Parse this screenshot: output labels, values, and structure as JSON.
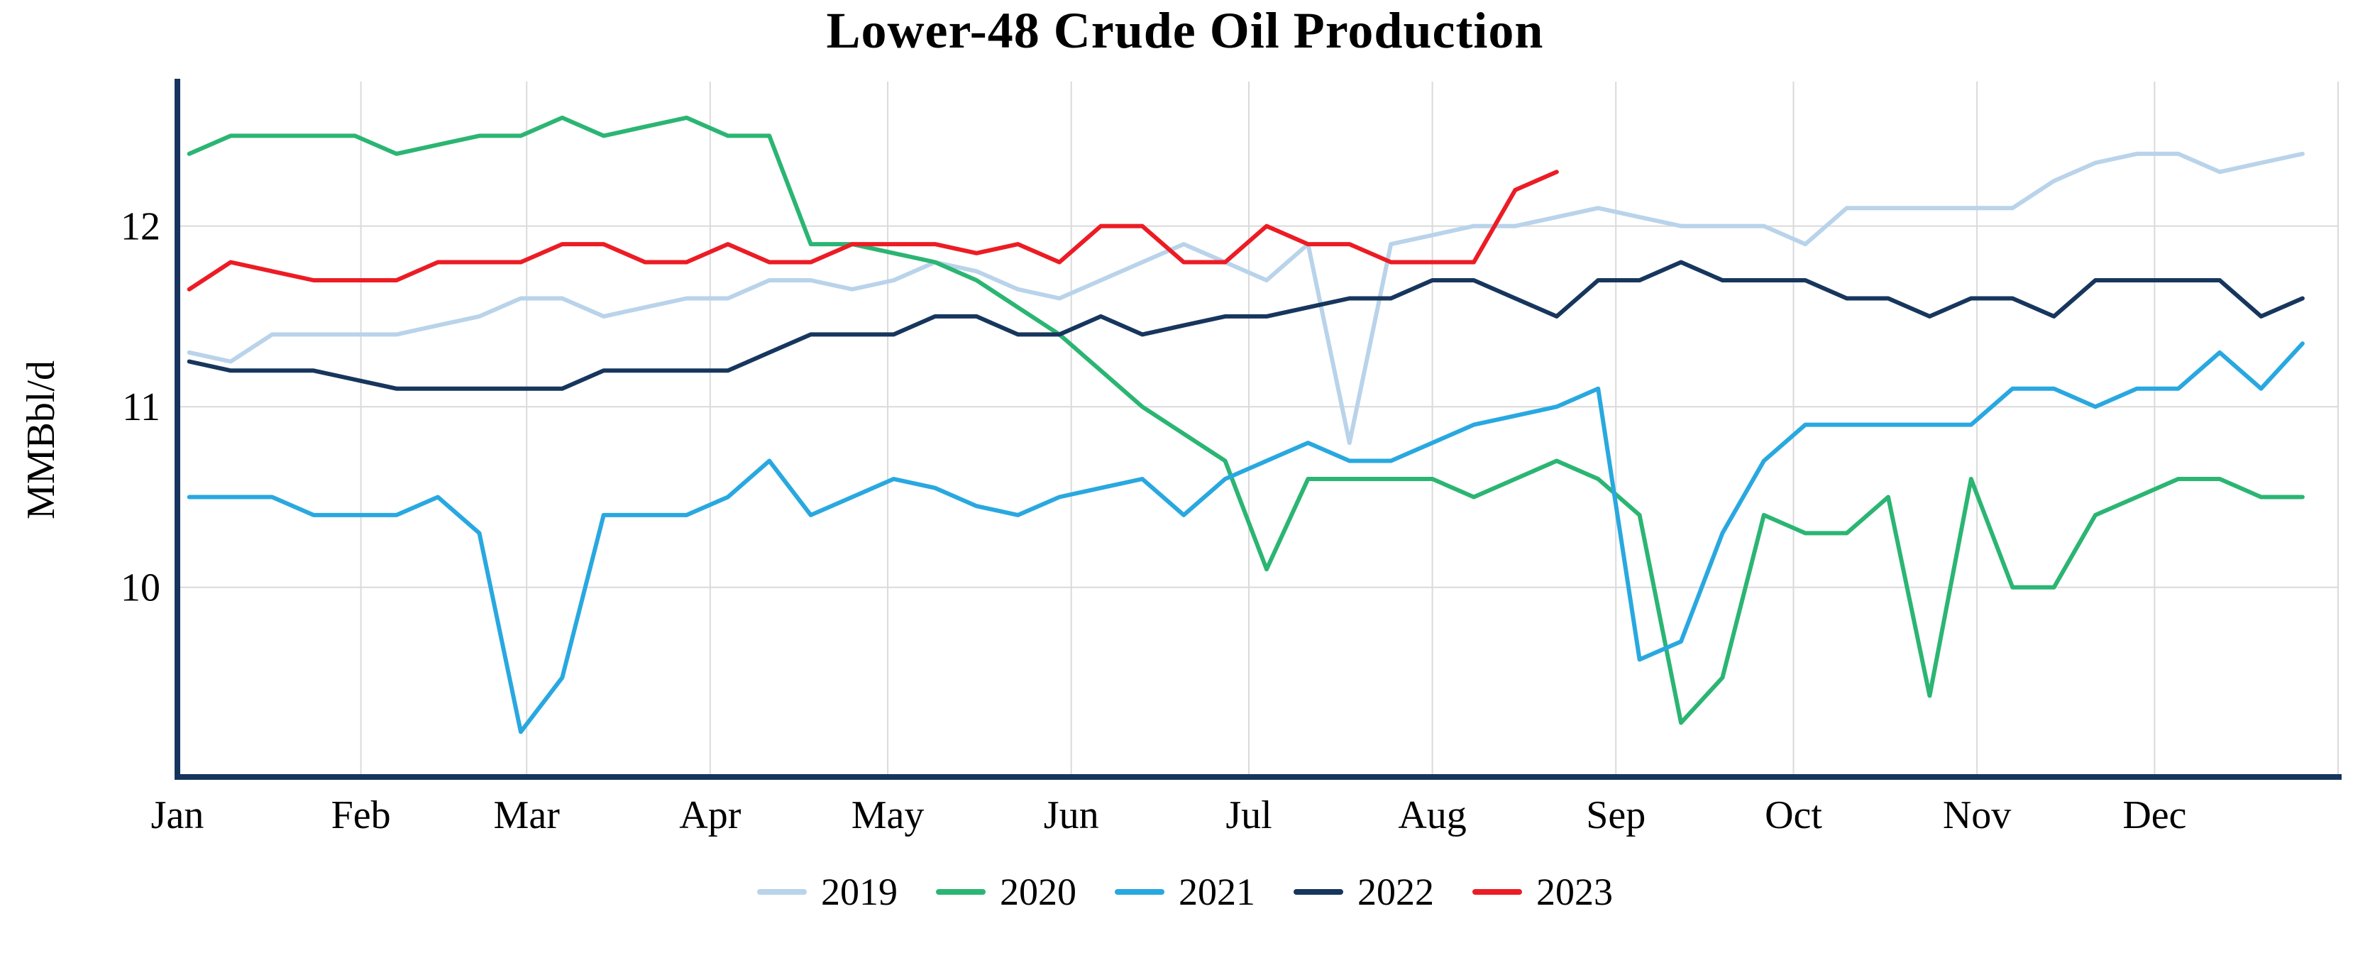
{
  "chart_data": {
    "type": "line",
    "title": "Lower-48 Crude Oil Production",
    "ylabel": "MMBbl/d",
    "xlabel": "",
    "grid": true,
    "legend_position": "bottom",
    "axis_color": "#16355c",
    "grid_color": "#dadada",
    "background_color": "#ffffff",
    "x_unit": "weekly observations, day_of_year = first_day + 7 * index",
    "first_day": 3,
    "x_domain_days": [
      1,
      366
    ],
    "month_start_days": [
      1,
      32,
      60,
      91,
      121,
      152,
      182,
      213,
      244,
      274,
      305,
      335
    ],
    "x_tick_labels": [
      "Jan",
      "Feb",
      "Mar",
      "Apr",
      "May",
      "Jun",
      "Jul",
      "Aug",
      "Sep",
      "Oct",
      "Nov",
      "Dec"
    ],
    "y_ticks": [
      10,
      11,
      12
    ],
    "y_tick_labels": [
      "10",
      "11",
      "12"
    ],
    "ylim": [
      8.95,
      12.8
    ],
    "series": [
      {
        "name": "2019",
        "color": "#b9d3ea",
        "values": [
          11.3,
          11.25,
          11.4,
          11.4,
          11.4,
          11.4,
          11.45,
          11.5,
          11.6,
          11.6,
          11.5,
          11.55,
          11.6,
          11.6,
          11.7,
          11.7,
          11.65,
          11.7,
          11.8,
          11.75,
          11.65,
          11.6,
          11.7,
          11.8,
          11.9,
          11.8,
          11.7,
          11.9,
          10.8,
          11.9,
          11.95,
          12.0,
          12.0,
          12.05,
          12.1,
          12.05,
          12.0,
          12.0,
          12.0,
          11.9,
          12.1,
          12.1,
          12.1,
          12.1,
          12.1,
          12.25,
          12.35,
          12.4,
          12.4,
          12.3,
          12.35,
          12.4
        ]
      },
      {
        "name": "2020",
        "color": "#2bb573",
        "values": [
          12.4,
          12.5,
          12.5,
          12.5,
          12.5,
          12.4,
          12.45,
          12.5,
          12.5,
          12.6,
          12.5,
          12.55,
          12.6,
          12.5,
          12.5,
          11.9,
          11.9,
          11.85,
          11.8,
          11.7,
          11.55,
          11.4,
          11.2,
          11.0,
          10.85,
          10.7,
          10.1,
          10.6,
          10.6,
          10.6,
          10.6,
          10.5,
          10.6,
          10.7,
          10.6,
          10.4,
          9.25,
          9.5,
          10.4,
          10.3,
          10.3,
          10.5,
          9.4,
          10.6,
          10.0,
          10.0,
          10.4,
          10.5,
          10.6,
          10.6,
          10.5,
          10.5
        ]
      },
      {
        "name": "2021",
        "color": "#29a8e0",
        "values": [
          10.5,
          10.5,
          10.5,
          10.4,
          10.4,
          10.4,
          10.5,
          10.3,
          9.2,
          9.5,
          10.4,
          10.4,
          10.4,
          10.5,
          10.7,
          10.4,
          10.5,
          10.6,
          10.55,
          10.45,
          10.4,
          10.5,
          10.55,
          10.6,
          10.4,
          10.6,
          10.7,
          10.8,
          10.7,
          10.7,
          10.8,
          10.9,
          10.95,
          11.0,
          11.1,
          9.6,
          9.7,
          10.3,
          10.7,
          10.9,
          10.9,
          10.9,
          10.9,
          10.9,
          11.1,
          11.1,
          11.0,
          11.1,
          11.1,
          11.3,
          11.1,
          11.35
        ]
      },
      {
        "name": "2022",
        "color": "#17365d",
        "values": [
          11.25,
          11.2,
          11.2,
          11.2,
          11.15,
          11.1,
          11.1,
          11.1,
          11.1,
          11.1,
          11.2,
          11.2,
          11.2,
          11.2,
          11.3,
          11.4,
          11.4,
          11.4,
          11.5,
          11.5,
          11.4,
          11.4,
          11.5,
          11.4,
          11.45,
          11.5,
          11.5,
          11.55,
          11.6,
          11.6,
          11.7,
          11.7,
          11.6,
          11.5,
          11.7,
          11.7,
          11.8,
          11.7,
          11.7,
          11.7,
          11.6,
          11.6,
          11.5,
          11.6,
          11.6,
          11.5,
          11.7,
          11.7,
          11.7,
          11.7,
          11.5,
          11.6
        ]
      },
      {
        "name": "2023",
        "color": "#ec1c24",
        "values": [
          11.65,
          11.8,
          11.75,
          11.7,
          11.7,
          11.7,
          11.8,
          11.8,
          11.8,
          11.9,
          11.9,
          11.8,
          11.8,
          11.9,
          11.8,
          11.8,
          11.9,
          11.9,
          11.9,
          11.85,
          11.9,
          11.8,
          12.0,
          12.0,
          11.8,
          11.8,
          12.0,
          11.9,
          11.9,
          11.8,
          11.8,
          11.8,
          12.2,
          12.3
        ]
      }
    ]
  }
}
